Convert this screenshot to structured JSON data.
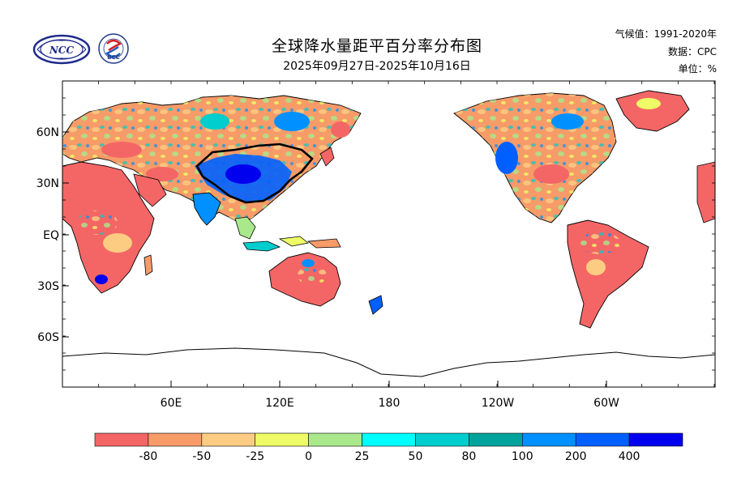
{
  "header": {
    "title": "全球降水量距平百分率分布图",
    "subtitle": "2025年09月27日-2025年10月16日",
    "climate_label": "气候值：1991-2020年",
    "data_label": "数据：CPC",
    "unit_label": "单位：%"
  },
  "logos": {
    "ncc": {
      "name": "NCC"
    },
    "bcc": {
      "name": "BCC"
    }
  },
  "axes": {
    "lat_labels": [
      "60N",
      "30N",
      "EQ",
      "30S",
      "60S"
    ],
    "lon_labels": [
      "60E",
      "120E",
      "180",
      "120W",
      "60W"
    ]
  },
  "colorbar": {
    "labels": [
      "-80",
      "-50",
      "-25",
      "0",
      "25",
      "50",
      "80",
      "100",
      "200",
      "400"
    ],
    "colors": [
      "#f46666",
      "#f79b69",
      "#fbcc82",
      "#eefa66",
      "#a9e98c",
      "#00ffff",
      "#00cdcd",
      "#00a39c",
      "#0090ff",
      "#0060ff",
      "#0000ee"
    ]
  },
  "palette": {
    "coast": "#000000",
    "border": "#000000"
  }
}
